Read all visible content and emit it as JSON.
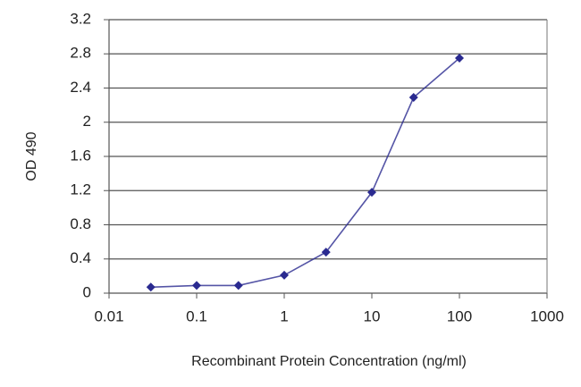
{
  "chart_data": {
    "type": "line",
    "x_label": "Recombinant Protein Concentration (ng/ml)",
    "y_label": "OD 490",
    "x": [
      0.03,
      0.1,
      0.3,
      1,
      3,
      10,
      30,
      100
    ],
    "values": [
      0.07,
      0.09,
      0.09,
      0.21,
      0.48,
      1.18,
      2.29,
      2.75
    ],
    "color": "#2a2a90",
    "xscale": "log",
    "xlim": [
      0.01,
      1000
    ],
    "xticks": [
      0.01,
      0.1,
      1,
      10,
      100,
      1000
    ],
    "ylim": [
      0,
      3.2
    ],
    "yticks": [
      0,
      0.4,
      0.8,
      1.2,
      1.6,
      2,
      2.4,
      2.8,
      3.2
    ],
    "grid": true
  }
}
